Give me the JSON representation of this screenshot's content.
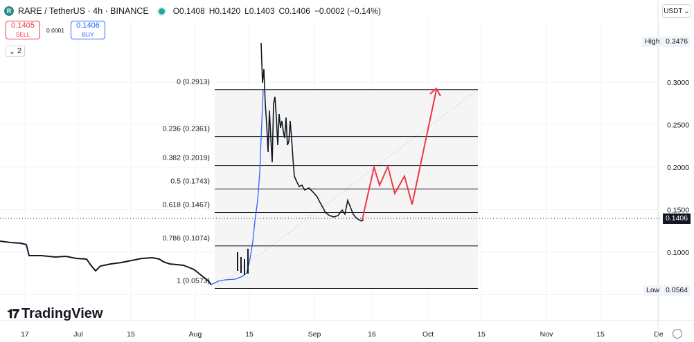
{
  "legend": {
    "symbol": "RARE / TetherUS · 4h · BINANCE",
    "open": "O0.1408",
    "high": "H0.1420",
    "low": "L0.1403",
    "close": "C0.1406",
    "change": "−0.0002 (−0.14%)"
  },
  "trade": {
    "sell_price": "0.1405",
    "sell_label": "SELL",
    "spread": "0.0001",
    "buy_price": "0.1406",
    "buy_label": "BUY"
  },
  "indicators_toggle": {
    "count": "2"
  },
  "currency_selector": "USDT",
  "price_axis": {
    "ticks": [
      "0.3000",
      "0.2500",
      "0.2000",
      "0.1500",
      "0.1000"
    ],
    "high_label": "High",
    "high_value": "0.3476",
    "low_label": "Low",
    "low_value": "0.0564",
    "current_price": "0.1406"
  },
  "time_axis": {
    "ticks": [
      "17",
      "Jul",
      "15",
      "Aug",
      "15",
      "Sep",
      "16",
      "Oct",
      "15",
      "Nov",
      "15",
      "De"
    ]
  },
  "fib_levels": [
    {
      "label": "0 (0.2913)",
      "price": 0.2913
    },
    {
      "label": "0.236 (0.2361)",
      "price": 0.2361
    },
    {
      "label": "0.382 (0.2019)",
      "price": 0.2019
    },
    {
      "label": "0.5 (0.1743)",
      "price": 0.1743
    },
    {
      "label": "0.618 (0.1467)",
      "price": 0.1467
    },
    {
      "label": "0.786 (0.1074)",
      "price": 0.1074
    },
    {
      "label": "1 (0.0573)",
      "price": 0.0573
    }
  ],
  "colors": {
    "candle_dark": "#131722",
    "candle_blue": "#2962ff",
    "projection": "#f23645",
    "fib_line": "#131722",
    "fib_fill": "#f5f5f5",
    "grid": "#f0f3fa"
  },
  "logo": {
    "text": "TradingView"
  }
}
